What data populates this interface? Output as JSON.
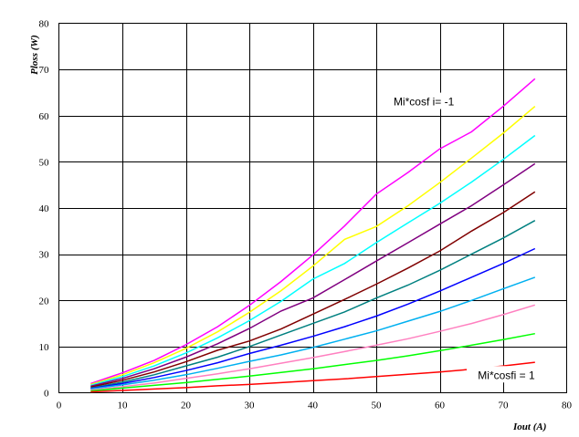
{
  "chart_data": {
    "type": "line",
    "title": "",
    "xlabel": "Iout (A)",
    "ylabel": "Ploss (W)",
    "xlim": [
      0,
      80
    ],
    "ylim": [
      0,
      80
    ],
    "xticks": [
      0,
      10,
      20,
      30,
      40,
      50,
      60,
      70,
      80
    ],
    "yticks": [
      0,
      10,
      20,
      30,
      40,
      50,
      60,
      70,
      80
    ],
    "grid": true,
    "x": [
      5,
      10,
      15,
      20,
      25,
      30,
      35,
      40,
      45,
      50,
      55,
      60,
      65,
      70,
      75
    ],
    "series": [
      {
        "color": "#ff00ff",
        "values": [
          2.0,
          4.3,
          7.0,
          10.4,
          14.3,
          18.9,
          24.1,
          29.8,
          36.1,
          43.0,
          47.7,
          52.8,
          56.5,
          62.0,
          68.0
        ]
      },
      {
        "color": "#ffff00",
        "values": [
          1.8,
          3.9,
          6.5,
          9.6,
          13.2,
          17.4,
          22.1,
          27.4,
          33.2,
          36.0,
          40.5,
          45.5,
          50.8,
          56.2,
          62.0
        ]
      },
      {
        "color": "#00ffff",
        "values": [
          1.6,
          3.5,
          5.8,
          8.6,
          11.9,
          15.6,
          19.8,
          24.6,
          28.0,
          32.5,
          36.8,
          41.0,
          45.6,
          50.5,
          55.7
        ]
      },
      {
        "color": "#800080",
        "values": [
          1.4,
          3.1,
          5.2,
          7.7,
          10.6,
          13.9,
          17.7,
          20.5,
          24.5,
          28.5,
          32.5,
          36.5,
          40.5,
          45.0,
          49.6
        ]
      },
      {
        "color": "#800000",
        "values": [
          1.2,
          2.7,
          4.5,
          6.7,
          9.2,
          11.2,
          13.8,
          17.0,
          20.2,
          23.5,
          27.0,
          30.7,
          35.0,
          39.0,
          43.5
        ]
      },
      {
        "color": "#008080",
        "values": [
          1.0,
          2.3,
          3.9,
          5.8,
          7.7,
          10.0,
          12.5,
          15.0,
          17.5,
          20.5,
          23.3,
          26.5,
          30.0,
          33.5,
          37.3
        ]
      },
      {
        "color": "#0000ff",
        "values": [
          0.9,
          2.0,
          3.3,
          4.8,
          6.5,
          8.5,
          10.3,
          12.2,
          14.3,
          16.6,
          19.2,
          22.0,
          25.0,
          28.0,
          31.2
        ]
      },
      {
        "color": "#00b0f0",
        "values": [
          0.8,
          1.7,
          2.7,
          3.9,
          5.3,
          6.8,
          8.2,
          9.8,
          11.6,
          13.4,
          15.5,
          17.6,
          20.0,
          22.5,
          25.0
        ]
      },
      {
        "color": "#ff80c0",
        "values": [
          0.6,
          1.3,
          2.1,
          3.1,
          4.1,
          5.2,
          6.4,
          7.6,
          8.9,
          10.3,
          11.7,
          13.3,
          15.0,
          16.9,
          19.0
        ]
      },
      {
        "color": "#00ff00",
        "values": [
          0.4,
          1.0,
          1.6,
          2.2,
          2.9,
          3.6,
          4.4,
          5.2,
          6.1,
          7.0,
          8.0,
          9.1,
          10.3,
          11.5,
          12.8
        ]
      },
      {
        "color": "#ff0000",
        "values": [
          0.2,
          0.5,
          0.8,
          1.1,
          1.5,
          1.8,
          2.2,
          2.6,
          3.0,
          3.5,
          4.0,
          4.5,
          5.1,
          5.8,
          6.6
        ]
      }
    ],
    "annotations": [
      {
        "text": "Mi*cosf i= -1",
        "x": 57.5,
        "y": 63
      },
      {
        "text": "Mi*cosfi = 1",
        "x": 70.5,
        "y": 3.8
      }
    ]
  }
}
